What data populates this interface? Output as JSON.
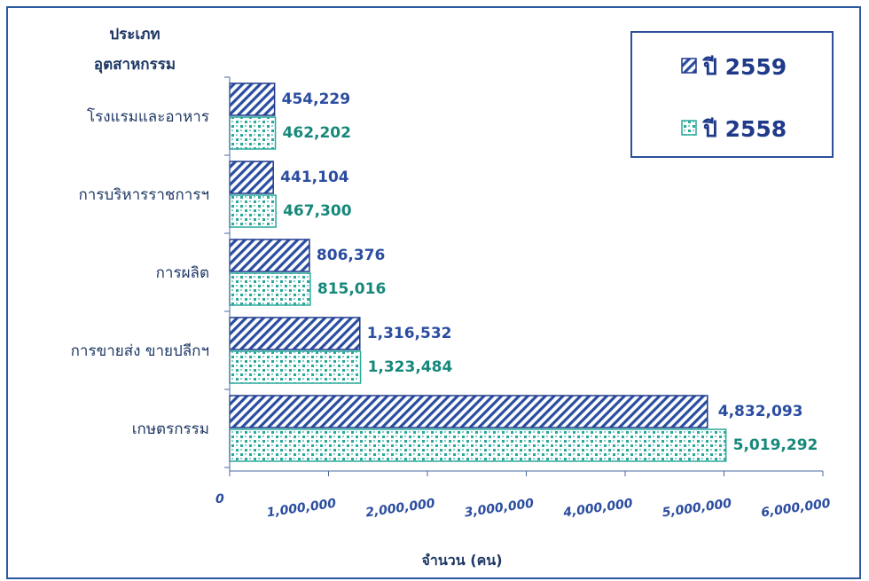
{
  "chart_data": {
    "type": "bar",
    "orientation": "horizontal",
    "category_header": "ประเภท\nอุตสาหกรรม",
    "categories": [
      "โรงแรมและอาหาร",
      "การบริหารราชการฯ",
      "การผลิต",
      "การขายส่ง   ขายปลีกฯ",
      "เกษตรกรรม"
    ],
    "series": [
      {
        "name": "ปี 2559",
        "values": [
          454229,
          441104,
          806376,
          1316532,
          4832093
        ],
        "labels": [
          "454,229",
          "441,104",
          "806,376",
          "1,316,532",
          "4,832,093"
        ],
        "pattern": "diagonal-hatch",
        "color": "#2b4da0"
      },
      {
        "name": "ปี 2558",
        "values": [
          462202,
          467300,
          815016,
          1323484,
          5019292
        ],
        "labels": [
          "462,202",
          "467,300",
          "815,016",
          "1,323,484",
          "5,019,292"
        ],
        "pattern": "dotted",
        "color": "#2aa89a"
      }
    ],
    "x_ticks": [
      "0",
      "1,000,000",
      "2,000,000",
      "3,000,000",
      "4,000,000",
      "5,000,000",
      "6,000,000"
    ],
    "xlim": [
      0,
      6000000
    ],
    "xlabel": "จำนวน (คน)",
    "grid": false,
    "legend": {
      "placement": "top-right",
      "entries": [
        "ปี 2559",
        "ปี 2558"
      ]
    },
    "colors": {
      "frame": "#2c5aa0",
      "axis": "#4a6aa0",
      "category_text": "#1f3864"
    }
  }
}
